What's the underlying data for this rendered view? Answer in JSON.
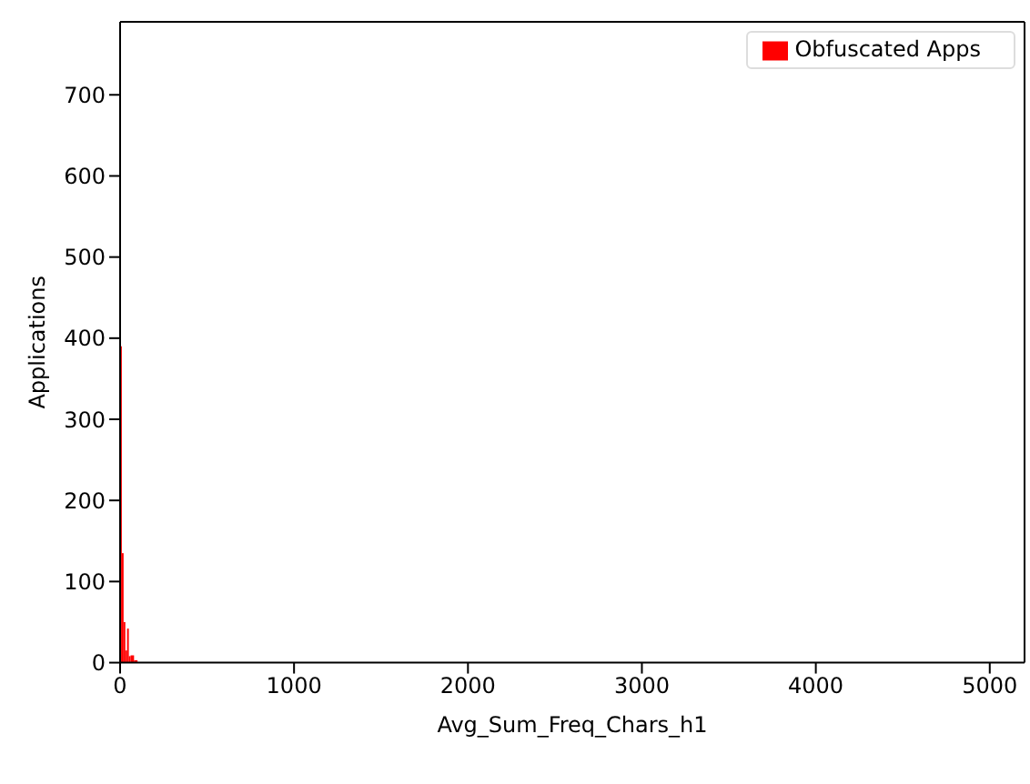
{
  "chart_data": {
    "type": "histogram",
    "xlabel": "Avg_Sum_Freq_Chars_h1",
    "ylabel": "Applications",
    "bins": [
      0,
      10,
      20,
      30,
      40,
      50,
      60,
      80,
      100
    ],
    "series": [
      {
        "name": "Obfuscated Apps",
        "color": "#ff0000",
        "values": [
          390,
          135,
          50,
          15,
          42,
          8,
          9,
          3
        ]
      }
    ],
    "xlim": [
      0,
      5200
    ],
    "xticks": [
      0,
      1000,
      2000,
      3000,
      4000,
      5000
    ],
    "ylim": [
      0,
      790
    ],
    "yticks": [
      0,
      100,
      200,
      300,
      400,
      500,
      600,
      700
    ],
    "grid": false,
    "legend": "top right"
  }
}
